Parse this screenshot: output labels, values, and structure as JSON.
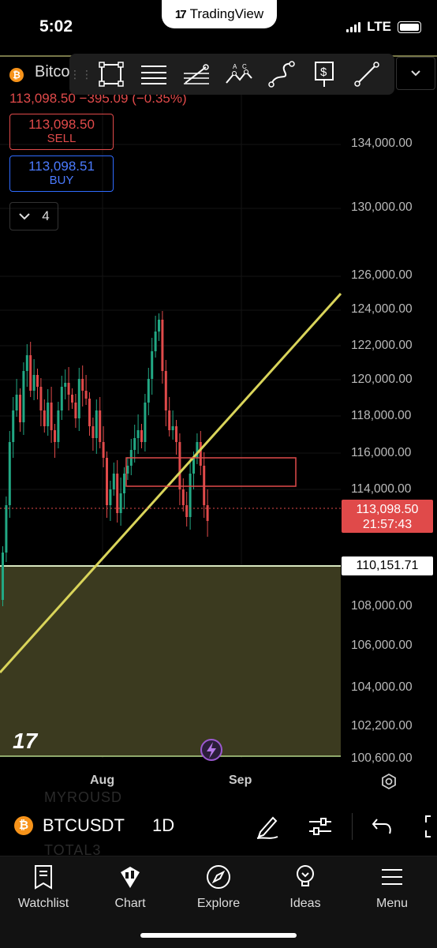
{
  "status": {
    "time": "5:02",
    "carrier": "LTE",
    "app": "TradingView"
  },
  "symbol": {
    "short_name": "Bitco",
    "icon": "bitcoin-icon",
    "last_line": "113,098.50  −395.09 (−0.35%)",
    "sell_price": "113,098.50",
    "sell_label": "SELL",
    "buy_price": "113,098.51",
    "buy_label": "BUY",
    "indicators_count": "4"
  },
  "drawing_tools": [
    "rectangle-tool-icon",
    "parallel-channel-icon",
    "fib-retracement-icon",
    "pattern-icon",
    "curve-icon",
    "price-range-icon",
    "trendline-icon"
  ],
  "chart_data": {
    "type": "candlestick",
    "y_ticks": [
      "134,000.00",
      "130,000.00",
      "126,000.00",
      "124,000.00",
      "122,000.00",
      "120,000.00",
      "118,000.00",
      "116,000.00",
      "114,000.00",
      "108,000.00",
      "106,000.00",
      "104,000.00",
      "102,200.00",
      "100,600.00"
    ],
    "x_ticks": [
      "Aug",
      "Sep"
    ],
    "last_price": "113,098.50",
    "countdown": "21:57:43",
    "horizontal_line": "110,151.71",
    "colors": {
      "up": "#22a884",
      "down": "#e04a4a",
      "trendline": "#d9d45a",
      "zone_fill": "#3b3a1f",
      "zone_border": "#c8e6a0"
    }
  },
  "bottom_bar": {
    "symbol": "BTCUSDT",
    "interval": "1D",
    "ghost_top": "MYROUSD",
    "ghost_bottom": "TOTAL3"
  },
  "tabs": [
    {
      "label": "Watchlist",
      "icon": "watchlist-icon"
    },
    {
      "label": "Chart",
      "icon": "chart-icon"
    },
    {
      "label": "Explore",
      "icon": "compass-icon"
    },
    {
      "label": "Ideas",
      "icon": "lightbulb-icon"
    },
    {
      "label": "Menu",
      "icon": "menu-icon"
    }
  ]
}
